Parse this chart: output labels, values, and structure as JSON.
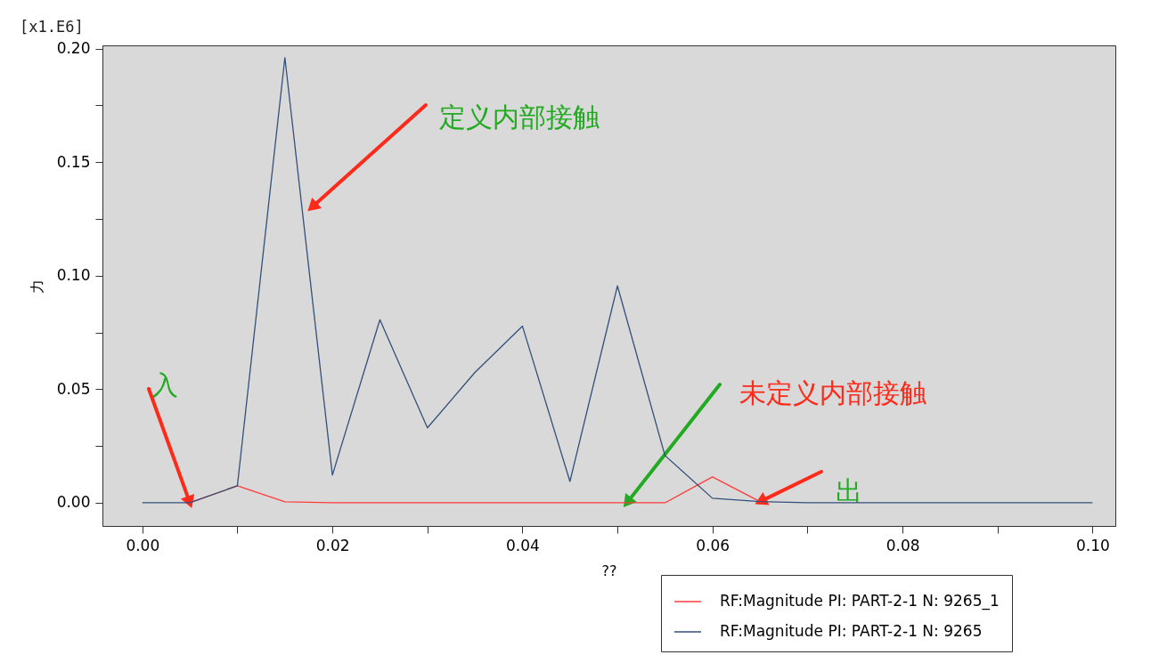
{
  "chart_data": {
    "type": "line",
    "xlabel": "??",
    "ylabel": "力",
    "annotations": [
      "[x1.E6]",
      "定义内部接触",
      {
        "text": "未定义内部接触",
        "x": 0.051,
        "y": 0
      },
      {
        "text": "入",
        "x": 0.005,
        "y": 0
      },
      {
        "text": "出",
        "x": 0.065,
        "y": 0.0005
      }
    ],
    "x": [
      0,
      0.005,
      0.01,
      0.015,
      0.02,
      0.025,
      0.03,
      0.035,
      0.04,
      0.045,
      0.05,
      0.055,
      0.06,
      0.065,
      0.07,
      0.075,
      0.08,
      0.085,
      0.09,
      0.095,
      0.1
    ],
    "series": [
      {
        "name": "RF:Magnitude PI: PART-2-1 N: 9265_1",
        "color": "#ff3b3b",
        "values": [
          null,
          0,
          0.0075,
          0.0004,
          0,
          0,
          0,
          0,
          0,
          0,
          0,
          0,
          0.0114,
          0.0005,
          null,
          null,
          null,
          null,
          null,
          null,
          null
        ]
      },
      {
        "name": "RF:Magnitude PI: PART-2-1 N: 9265",
        "color": "#34507a",
        "values": [
          0,
          0,
          0.0075,
          0.196,
          0.0122,
          0.0806,
          0.033,
          0.0574,
          0.0778,
          0.0094,
          0.0955,
          0.0208,
          0.002,
          0.0005,
          0,
          0,
          0,
          0,
          0,
          0,
          0
        ]
      }
    ],
    "xlim": [
      -0.0042,
      0.1024
    ],
    "xticks": [
      {
        "value": 0,
        "label": "0.00"
      },
      {
        "value": 0.01,
        "label": null
      },
      {
        "value": 0.02,
        "label": "0.02"
      },
      {
        "value": 0.03,
        "label": null
      },
      {
        "value": 0.04,
        "label": "0.04"
      },
      {
        "value": 0.05,
        "label": null
      },
      {
        "value": 0.06,
        "label": "0.06"
      },
      {
        "value": 0.07,
        "label": null
      },
      {
        "value": 0.08,
        "label": "0.08"
      },
      {
        "value": 0.09,
        "label": null
      },
      {
        "value": 0.1,
        "label": "0.10"
      }
    ],
    "ylim": [
      -0.0102,
      0.2014
    ],
    "yticks": [
      {
        "value": 0,
        "label": "0.00"
      },
      {
        "value": 0.025,
        "label": null
      },
      {
        "value": 0.05,
        "label": "0.05"
      },
      {
        "value": 0.075,
        "label": null
      },
      {
        "value": 0.1,
        "label": "0.10"
      },
      {
        "value": 0.125,
        "label": null
      },
      {
        "value": 0.15,
        "label": "0.15"
      },
      {
        "value": 0.175,
        "label": null
      },
      {
        "value": 0.2,
        "label": "0.20"
      }
    ],
    "grid": false,
    "legend": "bottom right",
    "marker": "none",
    "line_style": "solid"
  }
}
